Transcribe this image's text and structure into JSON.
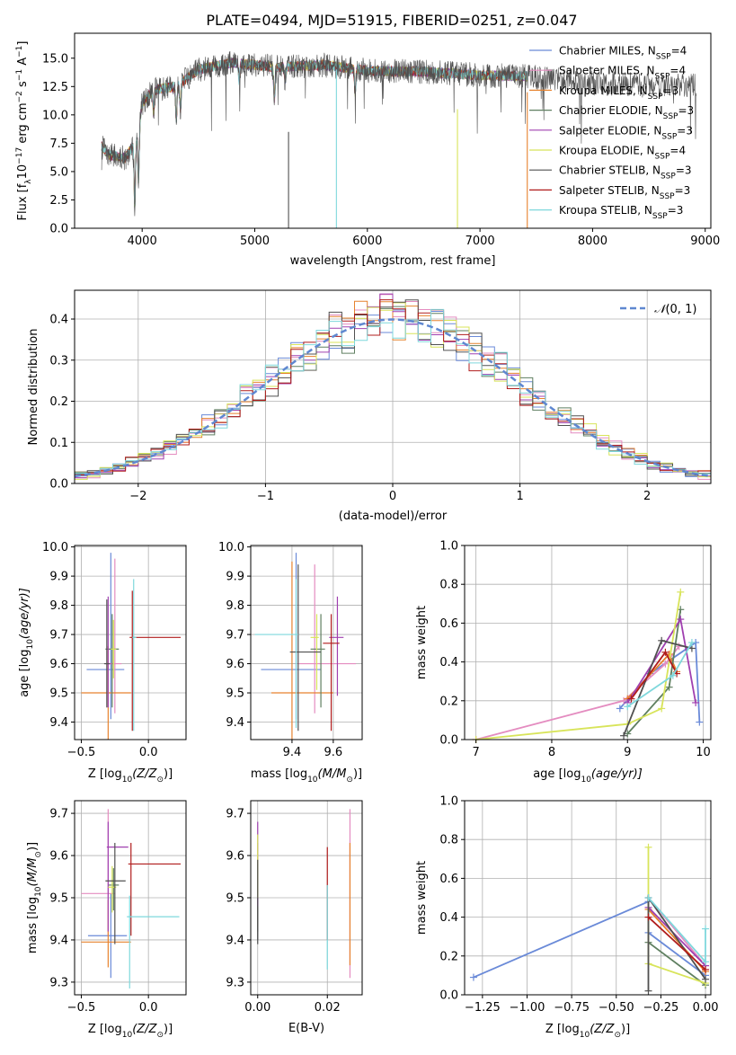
{
  "figure": {
    "title": "PLATE=0494, MJD=51915, FIBERID=0251, z=0.047"
  },
  "models": [
    {
      "name": "Chabrier MILES",
      "nssp": "4",
      "color": "#6a8ad8"
    },
    {
      "name": "Salpeter MILES",
      "nssp": "4",
      "color": "#e48cc0"
    },
    {
      "name": "Kroupa MILES",
      "nssp": "3",
      "color": "#e6822e"
    },
    {
      "name": "Chabrier ELODIE",
      "nssp": "3",
      "color": "#5f7f60"
    },
    {
      "name": "Salpeter ELODIE",
      "nssp": "3",
      "color": "#a040b0"
    },
    {
      "name": "Kroupa ELODIE",
      "nssp": "4",
      "color": "#d8e45a"
    },
    {
      "name": "Chabrier STELIB",
      "nssp": "3",
      "color": "#505050"
    },
    {
      "name": "Salpeter STELIB",
      "nssp": "3",
      "color": "#b01c1c"
    },
    {
      "name": "Kroupa STELIB",
      "nssp": "3",
      "color": "#7fd8dc"
    }
  ],
  "chart_data": [
    {
      "id": "spectrum",
      "type": "line",
      "title": "PLATE=0494, MJD=51915, FIBERID=0251, z=0.047",
      "xlabel": "wavelength [Angstrom, rest frame]",
      "ylabel": "Flux [f",
      "ylabel_sub": "λ",
      "ylabel_tail": "10",
      "ylabel_exp": "−17",
      "ylabel_unit": " erg cm",
      "ylabel_unit_exp1": "−2",
      "ylabel_unit_mid": " s",
      "ylabel_unit_exp2": "−1",
      "ylabel_unit_end": " A",
      "ylabel_unit_exp3": "−1",
      "ylabel_close": "]",
      "xlim": [
        3400,
        9050
      ],
      "ylim": [
        0,
        17.2
      ],
      "xticks": [
        4000,
        5000,
        6000,
        7000,
        8000,
        9000
      ],
      "yticks": [
        0.0,
        2.5,
        5.0,
        7.5,
        10.0,
        12.5,
        15.0
      ],
      "xtick_labels": [
        "4000",
        "5000",
        "6000",
        "7000",
        "8000",
        "9000"
      ],
      "ytick_labels": [
        "0.0",
        "2.5",
        "5.0",
        "7.5",
        "10.0",
        "12.5",
        "15.0"
      ],
      "data_range": [
        3640,
        8920
      ],
      "model_range": [
        3640,
        7420
      ],
      "continuum": [
        [
          3640,
          7.2
        ],
        [
          3700,
          6.5
        ],
        [
          3850,
          6.2
        ],
        [
          3950,
          7.8
        ],
        [
          4000,
          11.0
        ],
        [
          4100,
          12.2
        ],
        [
          4300,
          12.5
        ],
        [
          4500,
          14.0
        ],
        [
          4800,
          14.6
        ],
        [
          5200,
          14.2
        ],
        [
          5600,
          14.4
        ],
        [
          6000,
          13.9
        ],
        [
          6500,
          13.8
        ],
        [
          7000,
          13.5
        ],
        [
          7400,
          13.4
        ],
        [
          8000,
          12.8
        ],
        [
          8500,
          12.6
        ],
        [
          8920,
          12.7
        ]
      ],
      "absorption": [
        [
          3934,
          5.5
        ],
        [
          3968,
          4.6
        ],
        [
          4102,
          2.0
        ],
        [
          4304,
          3.0
        ],
        [
          4340,
          2.2
        ],
        [
          4861,
          1.5
        ],
        [
          5175,
          2.8
        ],
        [
          5270,
          1.2
        ],
        [
          5892,
          2.0
        ]
      ],
      "spikes": [
        [
          5300,
          8.5
        ],
        [
          5725,
          14.0
        ],
        [
          6800,
          10.5
        ],
        [
          7420,
          12.0
        ]
      ],
      "legend": {
        "position": "right"
      }
    },
    {
      "id": "residuals",
      "type": "histogram",
      "xlabel": "(data-model)/error",
      "ylabel": "Normed distribution",
      "xlim": [
        -2.5,
        2.5
      ],
      "ylim": [
        0,
        0.47
      ],
      "xticks": [
        -2,
        -1,
        0,
        1,
        2
      ],
      "yticks": [
        0.0,
        0.1,
        0.2,
        0.3,
        0.4
      ],
      "xtick_labels": [
        "−2",
        "−1",
        "0",
        "1",
        "2"
      ],
      "ytick_labels": [
        "0.0",
        "0.1",
        "0.2",
        "0.3",
        "0.4"
      ],
      "bin_width": 0.1,
      "reference_curve": {
        "label": "𝒩(0,1)",
        "color": "#5f87d0"
      },
      "legend": {
        "position": "top-right"
      }
    },
    {
      "id": "age-vs-Z",
      "type": "scatter",
      "xlabel": "Z [log",
      "xlabel_sub": "10",
      "xlabel_tail": "(Z/Z",
      "xlabel_sun": "⊙",
      "xlabel_close": ")]",
      "ylabel": "age  [log",
      "ylabel_sub": "10",
      "ylabel_tail": "(age/yr)]",
      "xlim": [
        -0.55,
        0.28
      ],
      "ylim": [
        9.34,
        10.005
      ],
      "xticks": [
        -0.5,
        0.0
      ],
      "yticks": [
        9.4,
        9.5,
        9.6,
        9.7,
        9.8,
        9.9,
        10.0
      ],
      "xtick_labels": [
        "−0.5",
        "0.0"
      ],
      "ytick_labels": [
        "9.4",
        "9.5",
        "9.6",
        "9.7",
        "9.8",
        "9.9",
        "10.0"
      ],
      "points": [
        {
          "x": -0.28,
          "y": 9.58,
          "xerr": [
            0.18,
            0.1
          ],
          "yerr": [
            0.17,
            0.4
          ]
        },
        {
          "x": -0.25,
          "y": 9.6,
          "xerr": [
            0.05,
            0.05
          ],
          "yerr": [
            0.17,
            0.36
          ]
        },
        {
          "x": -0.3,
          "y": 9.5,
          "xerr": [
            0.2,
            0.17
          ],
          "yerr": [
            0.16,
            0.16
          ]
        },
        {
          "x": -0.27,
          "y": 9.65,
          "xerr": [
            0.05,
            0.05
          ],
          "yerr": [
            0.2,
            0.12
          ]
        },
        {
          "x": -0.3,
          "y": 9.6,
          "xerr": [
            0.02,
            0.02
          ],
          "yerr": [
            0.15,
            0.23
          ]
        },
        {
          "x": -0.26,
          "y": 9.65,
          "xerr": [
            0.02,
            0.02
          ],
          "yerr": [
            0.1,
            0.1
          ]
        },
        {
          "x": -0.31,
          "y": 9.6,
          "xerr": [
            0.02,
            0.02
          ],
          "yerr": [
            0.15,
            0.22
          ]
        },
        {
          "x": -0.12,
          "y": 9.69,
          "xerr": [
            0.02,
            0.36
          ],
          "yerr": [
            0.32,
            0.16
          ]
        },
        {
          "x": -0.11,
          "y": 9.69,
          "xerr": [
            0.01,
            0.02
          ],
          "yerr": [
            0.32,
            0.2
          ]
        }
      ]
    },
    {
      "id": "age-vs-mass",
      "type": "scatter",
      "xlabel": "mass [log",
      "xlabel_sub": "10",
      "xlabel_tail": "(M/M",
      "xlabel_sun": "⊙",
      "xlabel_close": ")]",
      "xlim": [
        9.2,
        9.74
      ],
      "ylim": [
        9.34,
        10.005
      ],
      "xticks": [
        9.4,
        9.6
      ],
      "yticks": [
        9.4,
        9.5,
        9.6,
        9.7,
        9.8,
        9.9,
        10.0
      ],
      "xtick_labels": [
        "9.4",
        "9.6"
      ],
      "ytick_labels": [
        "9.4",
        "9.5",
        "9.6",
        "9.7",
        "9.8",
        "9.9",
        "10.0"
      ],
      "points": [
        {
          "x": 9.42,
          "y": 9.58,
          "xerr": [
            0.17,
            0.12
          ],
          "yerr": [
            0.17,
            0.4
          ]
        },
        {
          "x": 9.51,
          "y": 9.6,
          "xerr": [
            0.08,
            0.2
          ],
          "yerr": [
            0.17,
            0.34
          ]
        },
        {
          "x": 9.4,
          "y": 9.5,
          "xerr": [
            0.1,
            0.2
          ],
          "yerr": [
            0.16,
            0.45
          ]
        },
        {
          "x": 9.54,
          "y": 9.65,
          "xerr": [
            0.05,
            0.02
          ],
          "yerr": [
            0.2,
            0.12
          ]
        },
        {
          "x": 9.62,
          "y": 9.69,
          "xerr": [
            0.04,
            0.03
          ],
          "yerr": [
            0.2,
            0.14
          ]
        },
        {
          "x": 9.52,
          "y": 9.69,
          "xerr": [
            0.03,
            0.01
          ],
          "yerr": [
            0.18,
            0.08
          ]
        },
        {
          "x": 9.43,
          "y": 9.64,
          "xerr": [
            0.04,
            0.11
          ],
          "yerr": [
            0.27,
            0.3
          ]
        },
        {
          "x": 9.59,
          "y": 9.67,
          "xerr": [
            0.04,
            0.04
          ],
          "yerr": [
            0.3,
            0.1
          ]
        },
        {
          "x": 9.42,
          "y": 9.7,
          "xerr": [
            0.2,
            0.01
          ],
          "yerr": [
            0.32,
            0.19
          ]
        }
      ]
    },
    {
      "id": "weight-vs-age",
      "type": "line",
      "xlabel": "age  [log",
      "xlabel_sub": "10",
      "xlabel_tail": "(age/yr)]",
      "ylabel": "mass weight",
      "xlim": [
        6.85,
        10.1
      ],
      "ylim": [
        0,
        1.0
      ],
      "xticks": [
        7,
        8,
        9,
        10
      ],
      "yticks": [
        0.0,
        0.2,
        0.4,
        0.6,
        0.8,
        1.0
      ],
      "xtick_labels": [
        "7",
        "8",
        "9",
        "10"
      ],
      "ytick_labels": [
        "0.0",
        "0.2",
        "0.4",
        "0.6",
        "0.8",
        "1.0"
      ],
      "series": [
        {
          "x": [
            8.9,
            9.3,
            9.9,
            9.95
          ],
          "y": [
            0.16,
            0.34,
            0.5,
            0.09
          ]
        },
        {
          "x": [
            7.0,
            8.95,
            9.5,
            9.68
          ],
          "y": [
            0.0,
            0.2,
            0.39,
            0.48
          ]
        },
        {
          "x": [
            9.0,
            9.55,
            9.65
          ],
          "y": [
            0.21,
            0.44,
            0.35
          ]
        },
        {
          "x": [
            9.0,
            9.55,
            9.7
          ],
          "y": [
            0.03,
            0.27,
            0.67
          ]
        },
        {
          "x": [
            9.0,
            9.7,
            9.9
          ],
          "y": [
            0.19,
            0.62,
            0.19
          ]
        },
        {
          "x": [
            7.0,
            9.0,
            9.45,
            9.7
          ],
          "y": [
            0.0,
            0.08,
            0.16,
            0.76
          ]
        },
        {
          "x": [
            8.95,
            9.45,
            9.85
          ],
          "y": [
            0.02,
            0.51,
            0.47
          ]
        },
        {
          "x": [
            9.05,
            9.5,
            9.65
          ],
          "y": [
            0.21,
            0.45,
            0.34
          ]
        },
        {
          "x": [
            9.0,
            9.6,
            9.85
          ],
          "y": [
            0.17,
            0.33,
            0.5
          ]
        }
      ]
    },
    {
      "id": "mass-vs-Z",
      "type": "scatter",
      "xlabel": "Z [log",
      "xlabel_sub": "10",
      "xlabel_tail": "(Z/Z",
      "xlabel_sun": "⊙",
      "xlabel_close": ")]",
      "ylabel": "mass [log",
      "ylabel_sub": "10",
      "ylabel_tail": "(M/M",
      "ylabel_sun": "⊙",
      "ylabel_close": ")]",
      "xlim": [
        -0.55,
        0.28
      ],
      "ylim": [
        9.27,
        9.73
      ],
      "xticks": [
        -0.5,
        0.0
      ],
      "yticks": [
        9.3,
        9.4,
        9.5,
        9.6,
        9.7
      ],
      "xtick_labels": [
        "−0.5",
        "0.0"
      ],
      "ytick_labels": [
        "9.3",
        "9.4",
        "9.5",
        "9.6",
        "9.7"
      ],
      "points": [
        {
          "x": -0.28,
          "y": 9.41,
          "xerr": [
            0.17,
            0.12
          ],
          "yerr": [
            0.1,
            0.1
          ]
        },
        {
          "x": -0.3,
          "y": 9.51,
          "xerr": [
            0.2,
            0.05
          ],
          "yerr": [
            0.1,
            0.2
          ]
        },
        {
          "x": -0.3,
          "y": 9.395,
          "xerr": [
            0.2,
            0.17
          ],
          "yerr": [
            0.06,
            0.1
          ]
        },
        {
          "x": -0.26,
          "y": 9.53,
          "xerr": [
            0.04,
            0.04
          ],
          "yerr": [
            0.06,
            0.04
          ]
        },
        {
          "x": -0.3,
          "y": 9.62,
          "xerr": [
            0.01,
            0.15
          ],
          "yerr": [
            0.2,
            0.06
          ]
        },
        {
          "x": -0.27,
          "y": 9.525,
          "xerr": [
            0.03,
            0.03
          ],
          "yerr": [
            0.06,
            0.05
          ]
        },
        {
          "x": -0.25,
          "y": 9.54,
          "xerr": [
            0.07,
            0.08
          ],
          "yerr": [
            0.15,
            0.09
          ]
        },
        {
          "x": -0.13,
          "y": 9.58,
          "xerr": [
            0.02,
            0.37
          ],
          "yerr": [
            0.17,
            0.05
          ]
        },
        {
          "x": -0.14,
          "y": 9.455,
          "xerr": [
            0.02,
            0.37
          ],
          "yerr": [
            0.17,
            0.05
          ]
        }
      ]
    },
    {
      "id": "mass-vs-EBV",
      "type": "scatter",
      "xlabel": "E(B-V)",
      "xlim": [
        -0.002,
        0.03
      ],
      "ylim": [
        9.27,
        9.73
      ],
      "xticks": [
        0.0,
        0.02
      ],
      "yticks": [
        9.3,
        9.4,
        9.5,
        9.6,
        9.7
      ],
      "xtick_labels": [
        "0.00",
        "0.02"
      ],
      "ytick_labels": [
        "9.3",
        "9.4",
        "9.5",
        "9.6",
        "9.7"
      ],
      "points": [
        {
          "x": 0.0,
          "y": 9.55,
          "xerr": [
            0,
            0
          ],
          "yerr": [
            0.12,
            0.08
          ]
        },
        {
          "x": 0.0,
          "y": 9.53,
          "xerr": [
            0,
            0
          ],
          "yerr": [
            0.1,
            0.08
          ]
        },
        {
          "x": 0.0,
          "y": 9.5,
          "xerr": [
            0,
            0
          ],
          "yerr": [
            0.08,
            0.08
          ]
        },
        {
          "x": 0.0,
          "y": 9.5,
          "xerr": [
            0,
            0
          ],
          "yerr": [
            0.1,
            0.08
          ]
        },
        {
          "x": 0.0,
          "y": 9.6,
          "xerr": [
            0,
            0
          ],
          "yerr": [
            0.12,
            0.08
          ]
        },
        {
          "x": 0.0,
          "y": 9.6,
          "xerr": [
            0,
            0
          ],
          "yerr": [
            0.1,
            0.05
          ]
        },
        {
          "x": 0.0,
          "y": 9.47,
          "xerr": [
            0,
            0
          ],
          "yerr": [
            0.08,
            0.12
          ]
        },
        {
          "x": 0.02,
          "y": 9.5,
          "xerr": [
            0,
            0
          ],
          "yerr": [
            0.1,
            0.12
          ]
        },
        {
          "x": 0.02,
          "y": 9.45,
          "xerr": [
            0,
            0
          ],
          "yerr": [
            0.12,
            0.08
          ]
        },
        {
          "x": 0.0265,
          "y": 9.5,
          "xerr": [
            0,
            0
          ],
          "yerr": [
            0.19,
            0.21
          ]
        },
        {
          "x": 0.0265,
          "y": 9.45,
          "xerr": [
            0,
            0
          ],
          "yerr": [
            0.11,
            0.18
          ]
        }
      ],
      "point_models": [
        4,
        5,
        3,
        6,
        4,
        5,
        6,
        7,
        8,
        1,
        2
      ]
    },
    {
      "id": "weight-vs-Z",
      "type": "line",
      "xlabel": "Z [log",
      "xlabel_sub": "10",
      "xlabel_tail": "(Z/Z",
      "xlabel_sun": "⊙",
      "xlabel_close": ")]",
      "ylabel": "mass weight",
      "xlim": [
        -1.35,
        0.03
      ],
      "ylim": [
        0,
        1.0
      ],
      "xticks": [
        -1.25,
        -1.0,
        -0.75,
        -0.5,
        -0.25,
        0.0
      ],
      "yticks": [
        0.0,
        0.2,
        0.4,
        0.6,
        0.8,
        1.0
      ],
      "xtick_labels": [
        "−1.25",
        "−1.00",
        "−0.75",
        "−0.50",
        "−0.25",
        "0.00"
      ],
      "ytick_labels": [
        "0.0",
        "0.2",
        "0.4",
        "0.6",
        "0.8",
        "1.0"
      ],
      "series": [
        {
          "x": [
            -1.3,
            -0.32,
            -0.32,
            0.0
          ],
          "y": [
            0.09,
            0.48,
            0.32,
            0.1
          ]
        },
        {
          "x": [
            -0.32,
            0.0
          ],
          "y": [
            0.5,
            0.15
          ]
        },
        {
          "x": [
            -0.32,
            0.0
          ],
          "y": [
            0.44,
            0.12
          ]
        },
        {
          "x": [
            -0.32,
            0.0
          ],
          "y": [
            0.27,
            0.05
          ]
        },
        {
          "x": [
            -0.32,
            0.0
          ],
          "y": [
            0.45,
            0.15
          ]
        },
        {
          "x": [
            -0.32,
            -0.32,
            0.0
          ],
          "y": [
            0.76,
            0.16,
            0.06
          ]
        },
        {
          "x": [
            -0.32,
            -0.32,
            0.0
          ],
          "y": [
            0.02,
            0.5,
            0.08
          ]
        },
        {
          "x": [
            -0.32,
            0.0
          ],
          "y": [
            0.4,
            0.13
          ]
        },
        {
          "x": [
            -0.32,
            0.0,
            0.0
          ],
          "y": [
            0.5,
            0.17,
            0.34
          ]
        }
      ]
    }
  ]
}
